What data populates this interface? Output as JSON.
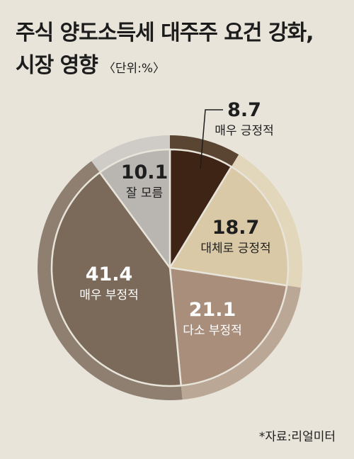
{
  "title_line1": "주식 양도소득세 대주주 요건 강화,",
  "title_line2": "시장 영향",
  "unit": "〈단위:%〉",
  "source": "*자료:리얼미터",
  "chart_data": {
    "type": "pie",
    "start": "12 o'clock, clockwise",
    "slices": [
      {
        "label": "매우 긍정적",
        "value": 8.7,
        "color": "#3e2414"
      },
      {
        "label": "대체로 긍정적",
        "value": 18.7,
        "color": "#d9c9a6"
      },
      {
        "label": "다소 부정적",
        "value": 21.1,
        "color": "#a88e7b"
      },
      {
        "label": "매우 부정적",
        "value": 41.4,
        "color": "#7b6a59"
      },
      {
        "label": "잘 모름",
        "value": 10.1,
        "color": "#b9b6b2"
      }
    ]
  }
}
